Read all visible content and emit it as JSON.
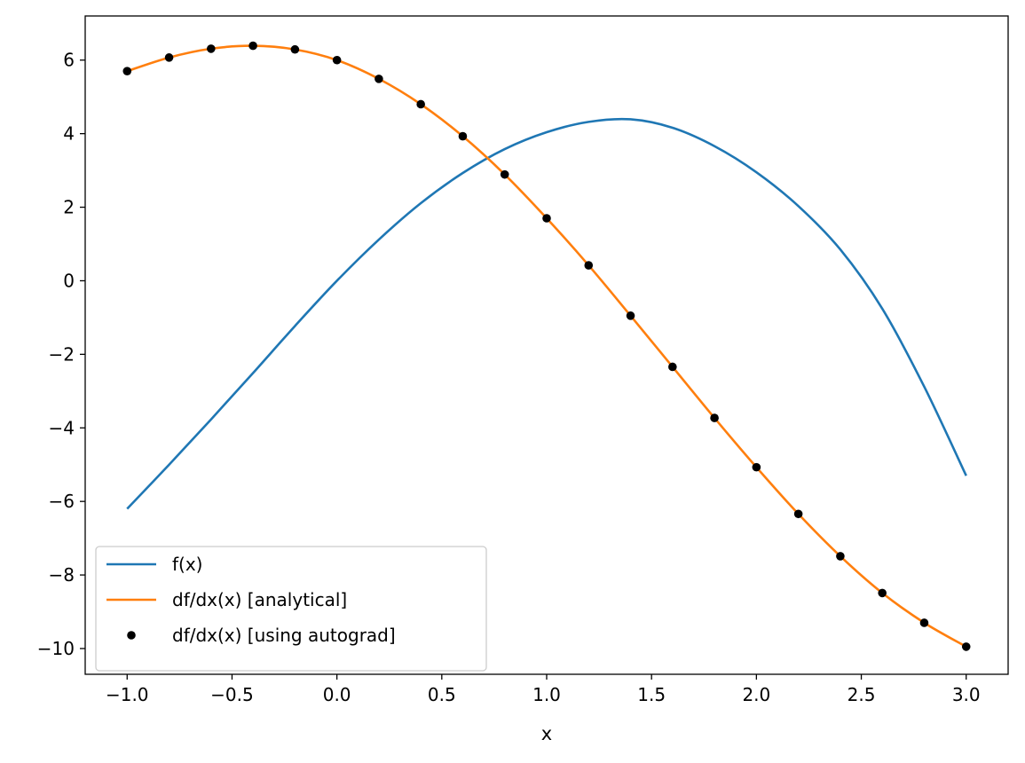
{
  "chart_data": {
    "type": "line",
    "title": "",
    "xlabel": "x",
    "ylabel": "",
    "xlim": [
      -1.2,
      3.2
    ],
    "ylim": [
      -10.7,
      7.2
    ],
    "xticks": [
      -1.0,
      -0.5,
      0.0,
      0.5,
      1.0,
      1.5,
      2.0,
      2.5,
      3.0
    ],
    "xtick_labels": [
      "−1.0",
      "−0.5",
      "0.0",
      "0.5",
      "1.0",
      "1.5",
      "2.0",
      "2.5",
      "3.0"
    ],
    "yticks": [
      6,
      4,
      2,
      0,
      -2,
      -4,
      -6,
      -8,
      -10
    ],
    "ytick_labels": [
      "6",
      "4",
      "2",
      "0",
      "−2",
      "−4",
      "−6",
      "−8",
      "−10"
    ],
    "grid": false,
    "legend_position": "lower-left",
    "series": [
      {
        "name": "f(x)",
        "style": "line",
        "color": "#1f77b4",
        "x": [
          -1.0,
          -0.8,
          -0.6,
          -0.4,
          -0.2,
          0.0,
          0.2,
          0.4,
          0.6,
          0.8,
          1.0,
          1.2,
          1.4,
          1.6,
          1.8,
          2.0,
          2.2,
          2.4,
          2.6,
          2.8,
          3.0
        ],
        "y": [
          -6.2,
          -5.0,
          -3.77,
          -2.51,
          -1.23,
          0.0,
          1.12,
          2.11,
          2.93,
          3.58,
          4.04,
          4.32,
          4.39,
          4.16,
          3.66,
          2.95,
          2.03,
          0.85,
          -0.76,
          -2.88,
          -5.3
        ]
      },
      {
        "name": "df/dx(x) [analytical]",
        "style": "line",
        "color": "#ff7f0e",
        "x": [
          -1.0,
          -0.8,
          -0.6,
          -0.4,
          -0.2,
          0.0,
          0.2,
          0.4,
          0.6,
          0.8,
          1.0,
          1.2,
          1.4,
          1.6,
          1.8,
          2.0,
          2.2,
          2.4,
          2.6,
          2.8,
          3.0
        ],
        "y": [
          5.7,
          6.07,
          6.31,
          6.39,
          6.29,
          6.0,
          5.49,
          4.8,
          3.93,
          2.89,
          1.7,
          0.42,
          -0.95,
          -2.34,
          -3.73,
          -5.07,
          -6.34,
          -7.49,
          -8.49,
          -9.3,
          -9.95
        ]
      },
      {
        "name": "df/dx(x) [using autograd]",
        "style": "markers",
        "color": "#000000",
        "x": [
          -1.0,
          -0.8,
          -0.6,
          -0.4,
          -0.2,
          0.0,
          0.2,
          0.4,
          0.6,
          0.8,
          1.0,
          1.2,
          1.4,
          1.6,
          1.8,
          2.0,
          2.2,
          2.4,
          2.6,
          2.8,
          3.0
        ],
        "y": [
          5.7,
          6.07,
          6.31,
          6.39,
          6.29,
          6.0,
          5.49,
          4.8,
          3.93,
          2.89,
          1.7,
          0.42,
          -0.95,
          -2.34,
          -3.73,
          -5.07,
          -6.34,
          -7.49,
          -8.49,
          -9.3,
          -9.95
        ]
      }
    ]
  }
}
